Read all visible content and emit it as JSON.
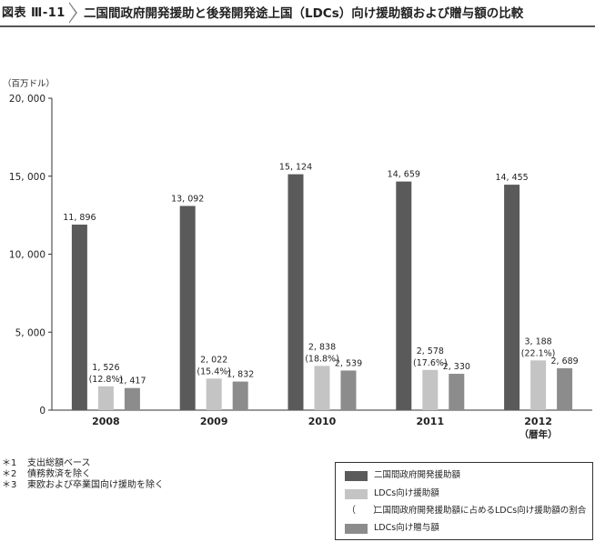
{
  "header": {
    "fig_label": "図表 Ⅲ-11",
    "title": "二国間政府開発援助と後発開発途上国（LDCs）向け援助額および贈与額の比較"
  },
  "chart_data": {
    "type": "bar",
    "unit_label": "（百万ドル）",
    "ylim": [
      0,
      20000
    ],
    "y_ticks": [
      0,
      5000,
      10000,
      15000,
      20000
    ],
    "y_tick_labels": [
      "0",
      "5, 000",
      "10, 000",
      "15, 000",
      "20, 000"
    ],
    "categories": [
      "2008",
      "2009",
      "2010",
      "2011",
      "2012"
    ],
    "category_suffix": [
      "",
      "",
      "",
      "",
      "（暦年）"
    ],
    "series": [
      {
        "name": "二国間政府開発援助額",
        "color": "#5a5a5a",
        "values": [
          11896,
          13092,
          15124,
          14659,
          14455
        ],
        "labels": [
          "11, 896",
          "13, 092",
          "15, 124",
          "14, 659",
          "14, 455"
        ]
      },
      {
        "name": "LDCs向け援助額",
        "color": "#c4c4c4",
        "values": [
          1526,
          2022,
          2838,
          2578,
          3188
        ],
        "labels": [
          "1, 526",
          "2, 022",
          "2, 838",
          "2, 578",
          "3, 188"
        ],
        "share_labels": [
          "(12.8%)",
          "(15.4%)",
          "(18.8%)",
          "(17.6%)",
          "(22.1%)"
        ]
      },
      {
        "name": "LDCs向け贈与額",
        "color": "#8c8c8c",
        "values": [
          1417,
          1832,
          2539,
          2330,
          2689
        ],
        "labels": [
          "1, 417",
          "1, 832",
          "2, 539",
          "2, 330",
          "2, 689"
        ]
      }
    ],
    "legend": [
      {
        "kind": "swatch",
        "color": "#5a5a5a",
        "text": "二国間政府開発援助額"
      },
      {
        "kind": "swatch",
        "color": "#c4c4c4",
        "text": "LDCs向け援助額"
      },
      {
        "kind": "paren",
        "mark": "（ ）",
        "text": "二国間政府開発援助額に占めるLDCs向け援助額の割合"
      },
      {
        "kind": "swatch",
        "color": "#8c8c8c",
        "text": "LDCs向け贈与額"
      }
    ],
    "legend_position": "bottom-right",
    "grid": false
  },
  "footnotes": [
    {
      "mark": "＊1",
      "text": "支出総額ベース"
    },
    {
      "mark": "＊2",
      "text": "債務救済を除く"
    },
    {
      "mark": "＊3",
      "text": "東欧および卒業国向け援助を除く"
    }
  ]
}
